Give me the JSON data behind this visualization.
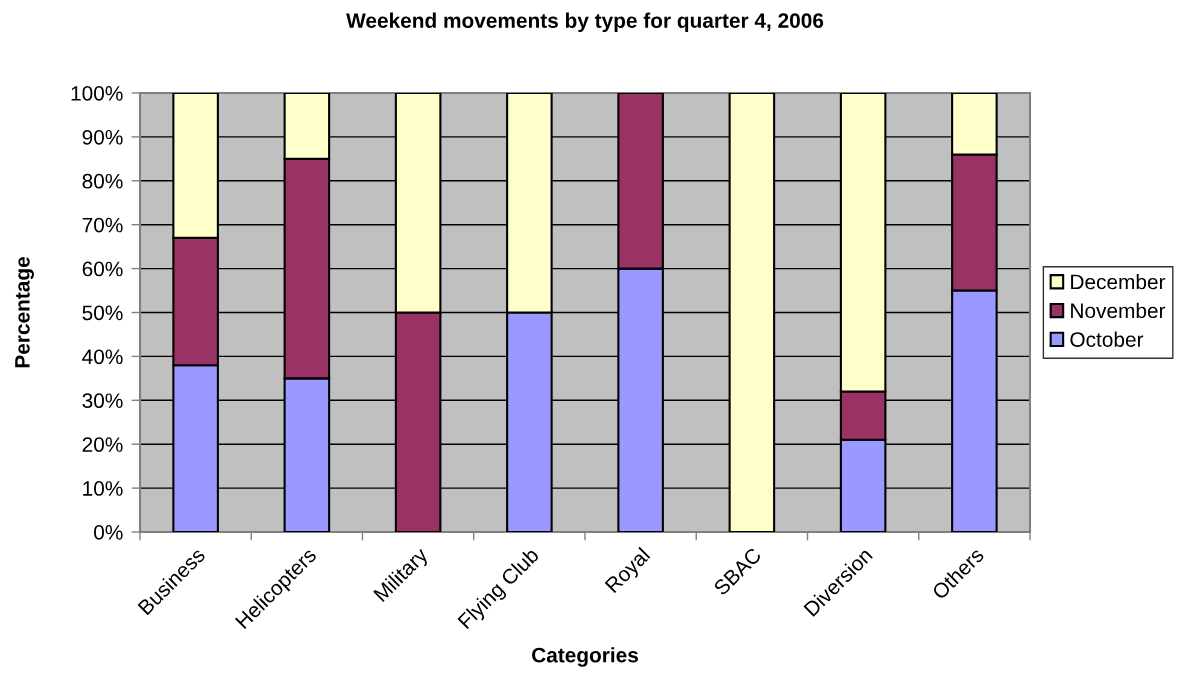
{
  "chart_data": {
    "type": "bar",
    "title": "Weekend movements by type for quarter 4, 2006",
    "xlabel": "Categories",
    "ylabel": "Percentage",
    "categories": [
      "Business",
      "Helicopters",
      "Military",
      "Flying Club",
      "Royal",
      "SBAC",
      "Diversion",
      "Others"
    ],
    "stacked": true,
    "series": [
      {
        "name": "October",
        "color": "#9999ff",
        "values": [
          38,
          35,
          0,
          50,
          60,
          0,
          21,
          55
        ]
      },
      {
        "name": "November",
        "color": "#993366",
        "values": [
          29,
          50,
          50,
          0,
          40,
          0,
          11,
          31
        ]
      },
      {
        "name": "December",
        "color": "#ffffcc",
        "values": [
          33,
          15,
          50,
          50,
          0,
          100,
          68,
          14
        ]
      }
    ],
    "ylim": [
      0,
      100
    ],
    "yticks": [
      {
        "value": 0,
        "label": "0%"
      },
      {
        "value": 10,
        "label": "10%"
      },
      {
        "value": 20,
        "label": "20%"
      },
      {
        "value": 30,
        "label": "30%"
      },
      {
        "value": 40,
        "label": "40%"
      },
      {
        "value": 50,
        "label": "50%"
      },
      {
        "value": 60,
        "label": "60%"
      },
      {
        "value": 70,
        "label": "70%"
      },
      {
        "value": 80,
        "label": "80%"
      },
      {
        "value": 90,
        "label": "90%"
      },
      {
        "value": 100,
        "label": "100%"
      }
    ],
    "grid": "y",
    "legend": "right"
  }
}
